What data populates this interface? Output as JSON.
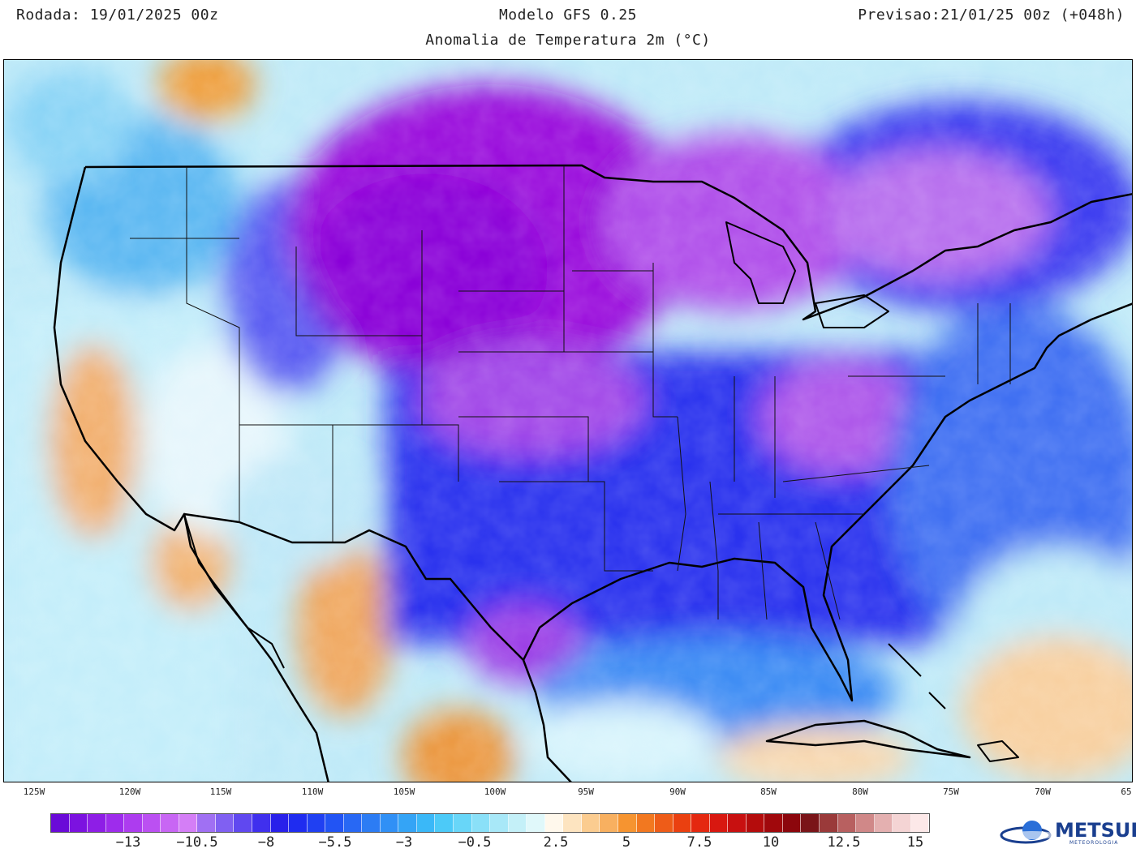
{
  "header": {
    "run": "Rodada: 19/01/2025 00z",
    "model": "Modelo GFS 0.25",
    "forecast": "Previsao:21/01/25 00z (+048h)",
    "subtitle": "Anomalia de Temperatura 2m (°C)"
  },
  "longitude_labels": [
    "125W",
    "120W",
    "115W",
    "110W",
    "105W",
    "100W",
    "95W",
    "90W",
    "85W",
    "80W",
    "75W",
    "70W",
    "65"
  ],
  "colorbar": {
    "tick_labels": [
      "−13",
      "−10.5",
      "−8",
      "−5.5",
      "−3",
      "−0.5",
      "2.5",
      "5",
      "7.5",
      "10",
      "12.5",
      "15"
    ],
    "colors": [
      "#6a0ad8",
      "#7c12e0",
      "#8e1ee6",
      "#9e2cec",
      "#ad3cef",
      "#bb50f2",
      "#c866f4",
      "#d47ef6",
      "#a070f3",
      "#8060f2",
      "#6048f0",
      "#4030ee",
      "#2820ea",
      "#1f2cf0",
      "#2040f2",
      "#2254f4",
      "#2868f4",
      "#2c7cf4",
      "#3090f6",
      "#34a4f6",
      "#3ab8f8",
      "#4ccaf8",
      "#68d6f8",
      "#8ae0f8",
      "#a8e8f8",
      "#c4f0f8",
      "#e0f8fa",
      "#fff8ec",
      "#fde4c0",
      "#fbcc90",
      "#f8b060",
      "#f69430",
      "#f27820",
      "#ee5c18",
      "#ea4010",
      "#e42810",
      "#d81810",
      "#c81010",
      "#b40c0c",
      "#a0080c",
      "#8c060c",
      "#7a1418",
      "#9a3a3a",
      "#b86060",
      "#d08888",
      "#e4b0b0",
      "#f4d4d4",
      "#fce8e8"
    ]
  },
  "logo": {
    "name": "METSUL",
    "sub": "METEOROLOGIA"
  },
  "colors": {
    "cold_core": "#8a00d8",
    "cold": "#3b2cf0",
    "cool": "#2aa8f4",
    "neutral": "#ffffff",
    "warm": "#f6a040"
  }
}
